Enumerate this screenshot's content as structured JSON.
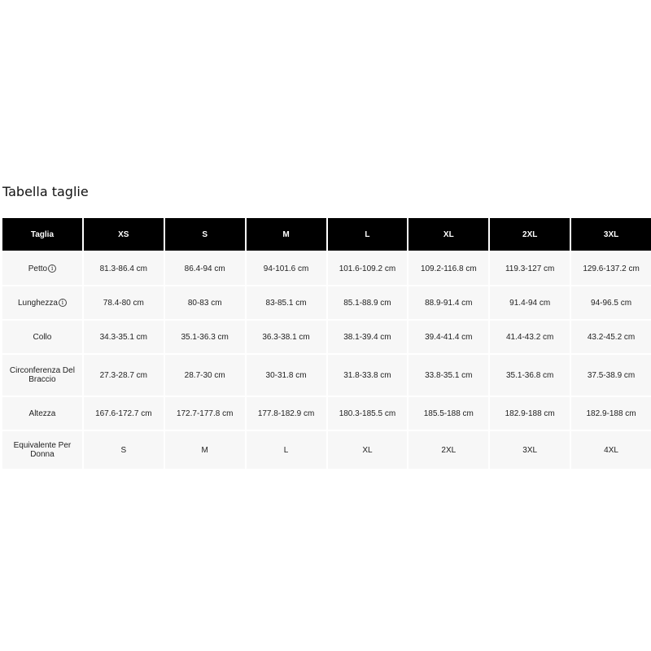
{
  "title": "Tabella taglie",
  "headers": [
    "Taglia",
    "XS",
    "S",
    "M",
    "L",
    "XL",
    "2XL",
    "3XL"
  ],
  "rows": [
    {
      "label": "Petto",
      "info": true,
      "values": [
        "81.3-86.4 cm",
        "86.4-94 cm",
        "94-101.6 cm",
        "101.6-109.2 cm",
        "109.2-116.8 cm",
        "119.3-127 cm",
        "129.6-137.2 cm"
      ]
    },
    {
      "label": "Lunghezza",
      "info": true,
      "values": [
        "78.4-80 cm",
        "80-83 cm",
        "83-85.1 cm",
        "85.1-88.9 cm",
        "88.9-91.4 cm",
        "91.4-94 cm",
        "94-96.5 cm"
      ]
    },
    {
      "label": "Collo",
      "info": false,
      "values": [
        "34.3-35.1 cm",
        "35.1-36.3 cm",
        "36.3-38.1 cm",
        "38.1-39.4 cm",
        "39.4-41.4 cm",
        "41.4-43.2 cm",
        "43.2-45.2 cm"
      ]
    },
    {
      "label": "Circonferenza Del Braccio",
      "info": false,
      "values": [
        "27.3-28.7 cm",
        "28.7-30 cm",
        "30-31.8 cm",
        "31.8-33.8 cm",
        "33.8-35.1 cm",
        "35.1-36.8 cm",
        "37.5-38.9 cm"
      ]
    },
    {
      "label": "Altezza",
      "info": false,
      "values": [
        "167.6-172.7 cm",
        "172.7-177.8 cm",
        "177.8-182.9 cm",
        "180.3-185.5 cm",
        "185.5-188 cm",
        "182.9-188 cm",
        "182.9-188 cm"
      ]
    },
    {
      "label": "Equivalente Per Donna",
      "info": false,
      "values": [
        "S",
        "M",
        "L",
        "XL",
        "2XL",
        "3XL",
        "4XL"
      ]
    }
  ],
  "icons": {
    "info": "info-circle-icon"
  }
}
